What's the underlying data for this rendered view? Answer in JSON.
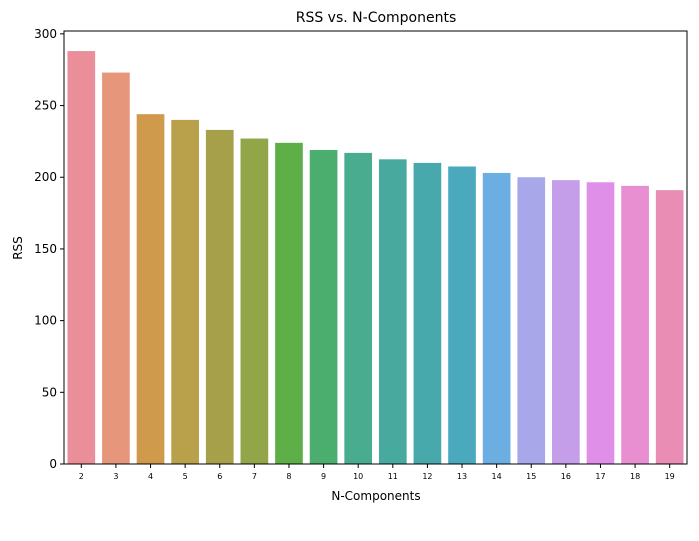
{
  "chart_data": {
    "type": "bar",
    "title": "RSS vs. N-Components",
    "xlabel": "N-Components",
    "ylabel": "RSS",
    "categories": [
      "2",
      "3",
      "4",
      "5",
      "6",
      "7",
      "8",
      "9",
      "10",
      "11",
      "12",
      "13",
      "14",
      "15",
      "16",
      "17",
      "18",
      "19"
    ],
    "values": [
      288,
      273,
      244,
      240,
      233,
      227,
      224,
      219,
      217,
      212.5,
      210,
      207.5,
      203,
      200,
      198,
      196.5,
      194,
      191
    ],
    "ylim": [
      0,
      302
    ],
    "yticks": [
      0,
      50,
      100,
      150,
      200,
      250,
      300
    ],
    "grid": false,
    "colors": [
      "#ea8f99",
      "#e6967b",
      "#cf9a4c",
      "#b9a04b",
      "#a6a04a",
      "#93a549",
      "#5faf49",
      "#4cae6e",
      "#4aac8e",
      "#48aa9f",
      "#48a9ad",
      "#4aa9bd",
      "#6aaee2",
      "#a7a7ea",
      "#c49ee9",
      "#e08fe8",
      "#e88fd1",
      "#e98db4"
    ]
  }
}
